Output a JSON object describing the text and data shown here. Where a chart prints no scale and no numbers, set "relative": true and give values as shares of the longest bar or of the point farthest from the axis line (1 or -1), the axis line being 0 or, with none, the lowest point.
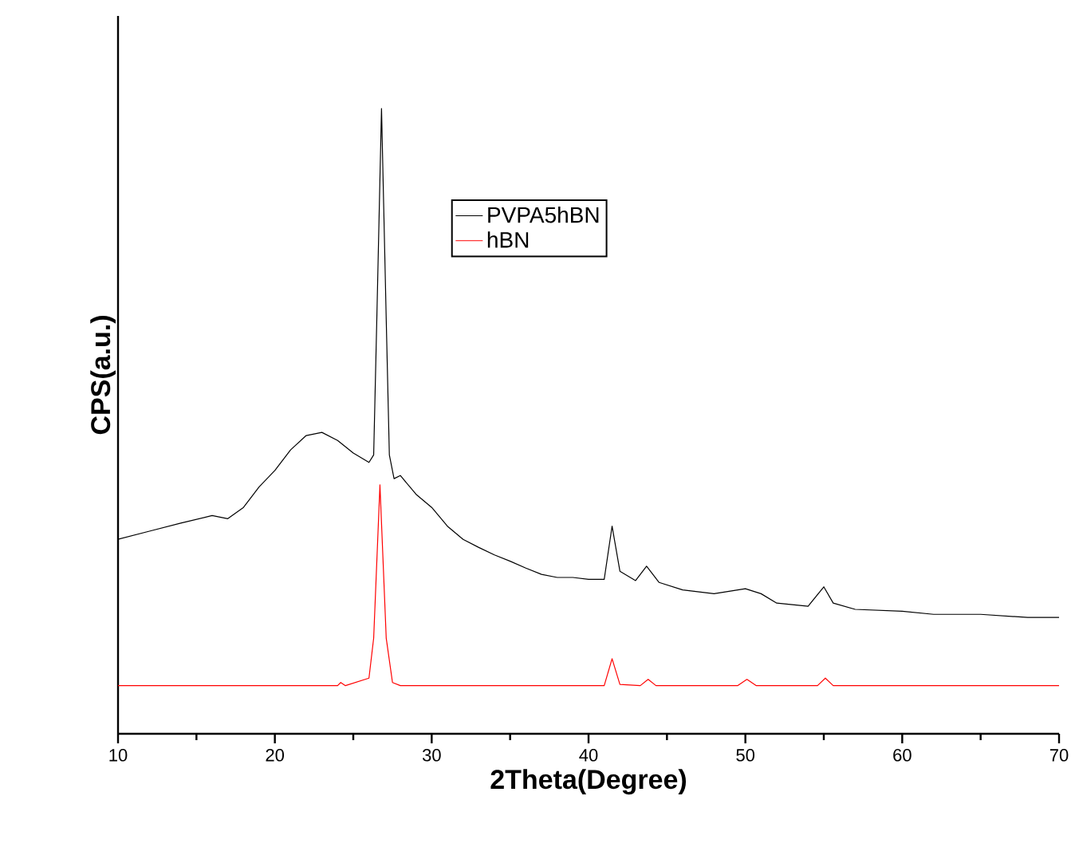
{
  "chart_data": {
    "type": "line",
    "xlabel": "2Theta(Degree)",
    "ylabel": "CPS(a.u.)",
    "relative": true,
    "legend": "top",
    "marker": "none",
    "line_style": "solid",
    "xlim": [
      10,
      70
    ],
    "xticks": [
      10,
      20,
      30,
      40,
      50,
      60,
      70
    ],
    "series": [
      {
        "name": "PVPA5hBN",
        "color": "#000000",
        "x": [
          10,
          12,
          14,
          16,
          17,
          18,
          19,
          20,
          21,
          22,
          23,
          24,
          25,
          26,
          26.3,
          26.5,
          26.8,
          27.1,
          27.3,
          27.6,
          28,
          29,
          30,
          31,
          32,
          33,
          34,
          35,
          36,
          37,
          38,
          39,
          40,
          41,
          41.5,
          42,
          43,
          43.7,
          44.5,
          46,
          48,
          50,
          51,
          52,
          54,
          55,
          55.6,
          57,
          60,
          62,
          65,
          68,
          70
        ],
        "values": [
          0.311,
          0.324,
          0.337,
          0.349,
          0.344,
          0.362,
          0.395,
          0.421,
          0.454,
          0.477,
          0.482,
          0.469,
          0.449,
          0.434,
          0.446,
          0.663,
          1.0,
          0.663,
          0.446,
          0.408,
          0.413,
          0.383,
          0.362,
          0.332,
          0.311,
          0.298,
          0.286,
          0.276,
          0.265,
          0.255,
          0.25,
          0.25,
          0.247,
          0.247,
          0.332,
          0.26,
          0.245,
          0.268,
          0.242,
          0.23,
          0.224,
          0.232,
          0.224,
          0.209,
          0.204,
          0.235,
          0.209,
          0.199,
          0.196,
          0.191,
          0.191,
          0.186,
          0.186
        ]
      },
      {
        "name": "hBN",
        "color": "#ff0000",
        "x": [
          10,
          20,
          24,
          24.2,
          24.5,
          26,
          26.3,
          26.7,
          27.1,
          27.5,
          28,
          41,
          41.5,
          42,
          43.3,
          43.8,
          44.3,
          49.5,
          50.1,
          50.7,
          54.6,
          55.1,
          55.6,
          70
        ],
        "values": [
          0.077,
          0.077,
          0.077,
          0.082,
          0.077,
          0.089,
          0.153,
          0.398,
          0.153,
          0.082,
          0.077,
          0.077,
          0.12,
          0.079,
          0.077,
          0.087,
          0.077,
          0.077,
          0.087,
          0.077,
          0.077,
          0.089,
          0.077,
          0.077
        ]
      }
    ]
  }
}
